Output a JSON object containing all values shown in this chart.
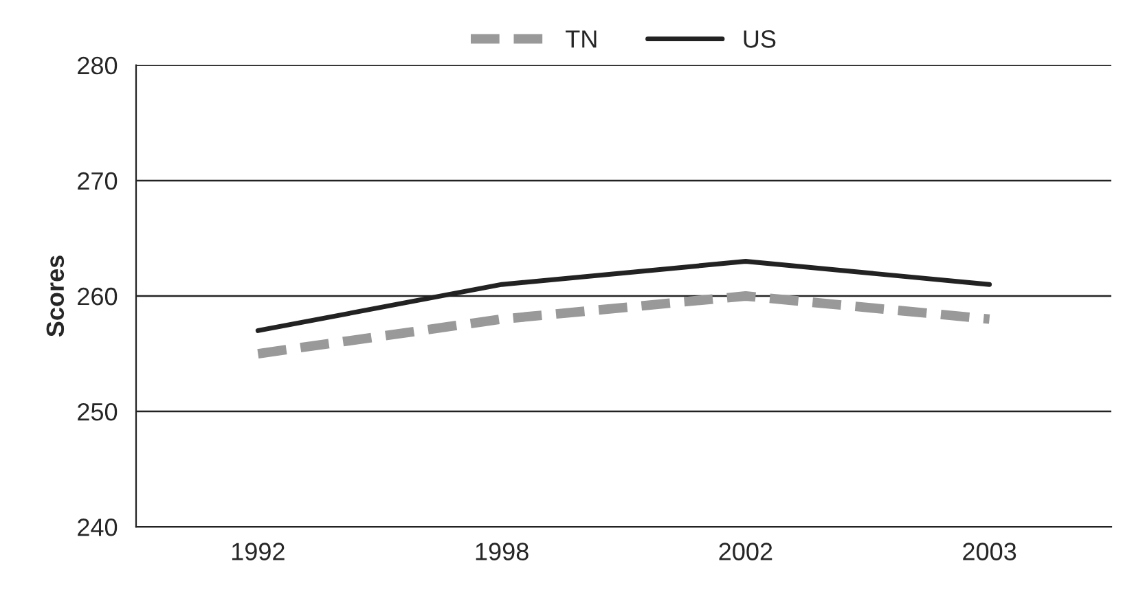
{
  "chart_data": {
    "type": "line",
    "ylabel": "Scores",
    "categories": [
      "1992",
      "1998",
      "2002",
      "2003"
    ],
    "series": [
      {
        "name": "TN",
        "color": "#999999",
        "values": [
          255,
          258,
          260,
          258
        ],
        "line_style": "dashed"
      },
      {
        "name": "US",
        "color": "#222222",
        "values": [
          257,
          261,
          263,
          261
        ],
        "line_style": "solid"
      }
    ],
    "ylim": [
      240,
      280
    ],
    "yticks": [
      240,
      250,
      260,
      270,
      280
    ],
    "grid": "y",
    "legend": "top",
    "marker": "none"
  }
}
